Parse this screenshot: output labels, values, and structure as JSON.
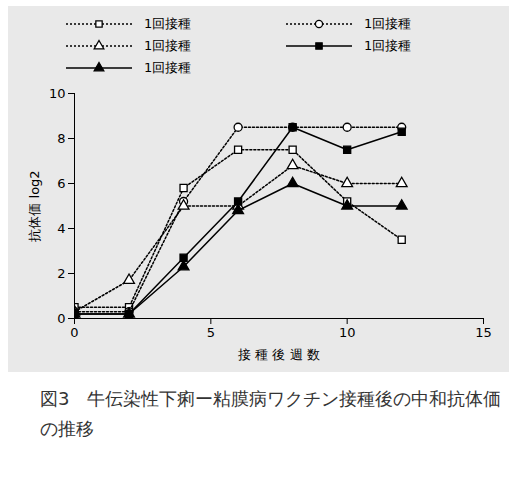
{
  "chart_data": {
    "type": "line",
    "title": "図3　牛伝染性下痢ー粘膜病ワクチン接種後の中和抗体価の推移",
    "x_label": "接 種 後 週 数",
    "y_label": "抗体価 log2",
    "x": [
      0,
      2,
      4,
      6,
      8,
      10,
      12
    ],
    "series": [
      {
        "name": "1回接種",
        "color": "#000000",
        "marker": "open_square",
        "line_style": "dotted",
        "values": [
          0.5,
          0.5,
          5.8,
          7.5,
          7.5,
          5.2,
          3.5
        ]
      },
      {
        "name": "1回接種",
        "color": "#000000",
        "marker": "open_circle",
        "line_style": "dotted",
        "values": [
          0.3,
          0.3,
          5.2,
          8.5,
          8.5,
          8.5,
          8.5
        ]
      },
      {
        "name": "1回接種",
        "color": "#000000",
        "marker": "open_triangle",
        "line_style": "dotted",
        "values": [
          0.3,
          1.7,
          5.0,
          5.0,
          6.8,
          6.0,
          6.0
        ]
      },
      {
        "name": "1回接種",
        "color": "#000000",
        "marker": "filled_square",
        "line_style": "solid",
        "values": [
          0.2,
          0.2,
          2.7,
          5.2,
          8.5,
          7.5,
          8.3
        ]
      },
      {
        "name": "1回接種",
        "color": "#000000",
        "marker": "filled_triangle",
        "line_style": "solid",
        "values": [
          0.2,
          0.2,
          2.3,
          4.8,
          6.0,
          5.0,
          5.0
        ]
      }
    ],
    "xlim": [
      0,
      15
    ],
    "xticks": [
      0,
      5,
      10,
      15
    ],
    "ylim": [
      0,
      10
    ],
    "yticks": [
      0,
      2,
      4,
      6,
      8,
      10
    ],
    "grid": false,
    "legend": "top"
  }
}
